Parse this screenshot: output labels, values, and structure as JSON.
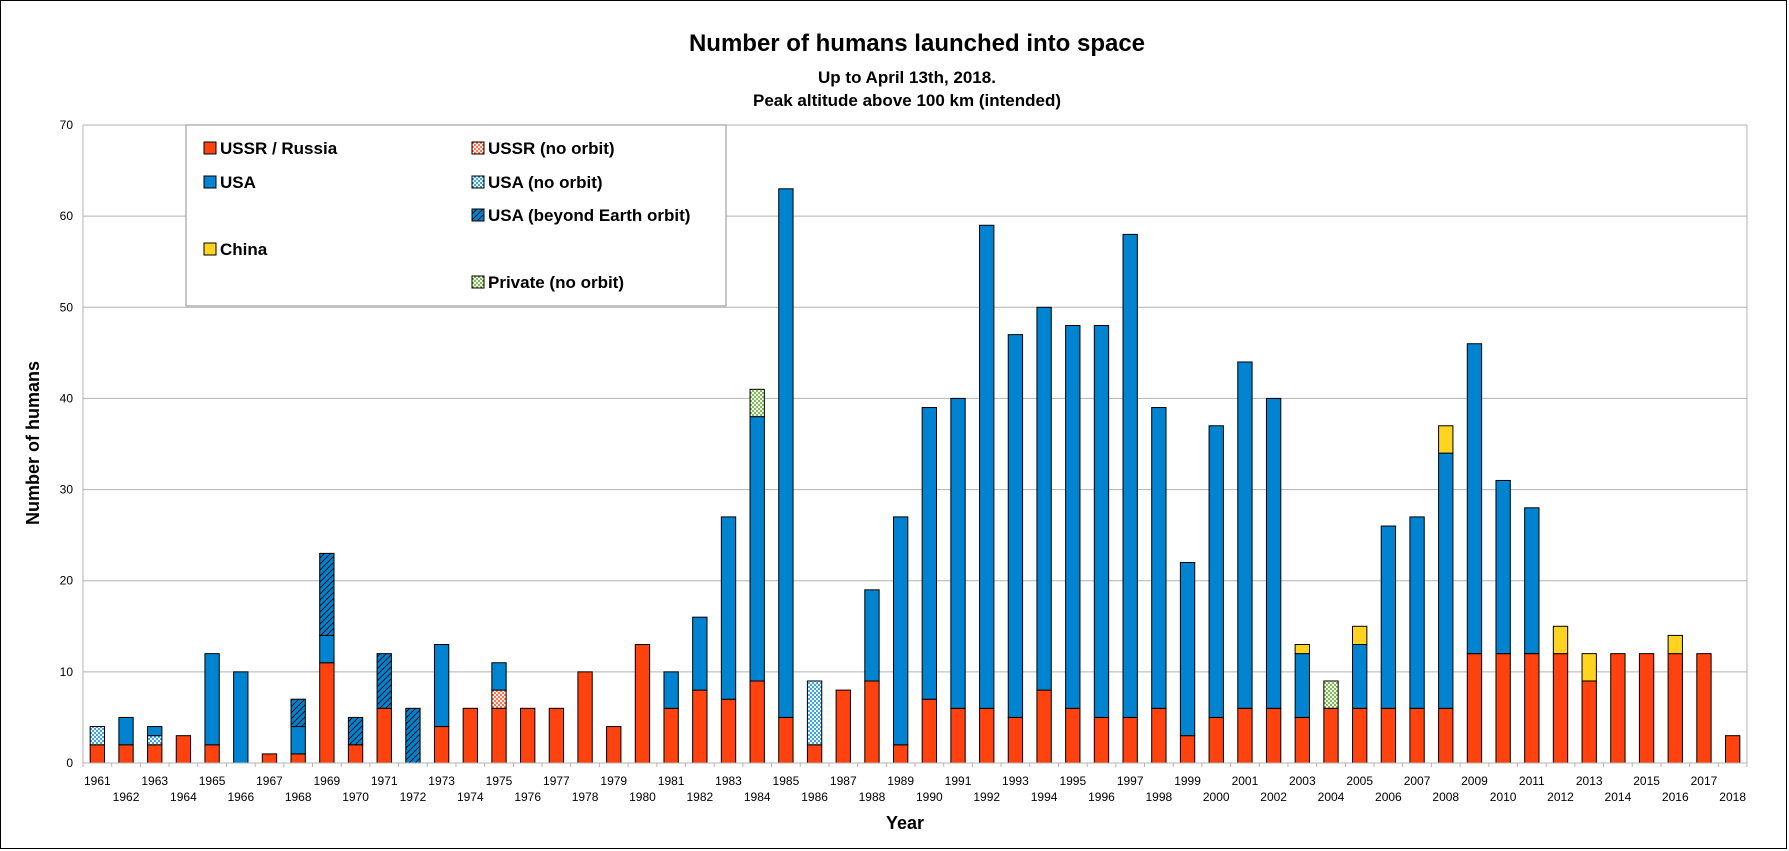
{
  "chart_data": {
    "type": "bar",
    "stacked": true,
    "title": "Number of humans launched into space",
    "subtitle_lines": [
      "Up to April 13th, 2018.",
      "Peak altitude above 100 km (intended)"
    ],
    "xlabel": "Year",
    "ylabel": "Number of humans",
    "ylim": [
      0,
      70
    ],
    "yticks": [
      0,
      10,
      20,
      30,
      40,
      50,
      60,
      70
    ],
    "grid": true,
    "legend_position": "top-left",
    "categories": [
      "1961",
      "1962",
      "1963",
      "1964",
      "1965",
      "1966",
      "1967",
      "1968",
      "1969",
      "1970",
      "1971",
      "1972",
      "1973",
      "1974",
      "1975",
      "1976",
      "1977",
      "1978",
      "1979",
      "1980",
      "1981",
      "1982",
      "1983",
      "1984",
      "1985",
      "1986",
      "1987",
      "1988",
      "1989",
      "1990",
      "1991",
      "1992",
      "1993",
      "1994",
      "1995",
      "1996",
      "1997",
      "1998",
      "1999",
      "2000",
      "2001",
      "2002",
      "2003",
      "2004",
      "2005",
      "2006",
      "2007",
      "2008",
      "2009",
      "2010",
      "2011",
      "2012",
      "2013",
      "2014",
      "2015",
      "2016",
      "2017",
      "2018"
    ],
    "series": [
      {
        "name": "USSR / Russia",
        "key": "ussr",
        "color": "#ff420e",
        "pattern": "solid",
        "values": [
          2,
          2,
          2,
          3,
          2,
          0,
          1,
          1,
          11,
          2,
          6,
          0,
          4,
          6,
          6,
          6,
          6,
          10,
          4,
          13,
          6,
          8,
          7,
          9,
          5,
          2,
          8,
          9,
          2,
          7,
          6,
          6,
          5,
          8,
          6,
          5,
          5,
          6,
          3,
          5,
          6,
          6,
          5,
          6,
          6,
          6,
          6,
          6,
          12,
          12,
          12,
          12,
          9,
          12,
          12,
          12,
          12,
          3
        ]
      },
      {
        "name": "USSR (no orbit)",
        "key": "ussr_no",
        "color": "#ff420e",
        "pattern": "crosshatch",
        "values": [
          0,
          0,
          0,
          0,
          0,
          0,
          0,
          0,
          0,
          0,
          0,
          0,
          0,
          0,
          2,
          0,
          0,
          0,
          0,
          0,
          0,
          0,
          0,
          0,
          0,
          0,
          0,
          0,
          0,
          0,
          0,
          0,
          0,
          0,
          0,
          0,
          0,
          0,
          0,
          0,
          0,
          0,
          0,
          0,
          0,
          0,
          0,
          0,
          0,
          0,
          0,
          0,
          0,
          0,
          0,
          0,
          0,
          0
        ]
      },
      {
        "name": "USA (no orbit)",
        "key": "usa_no",
        "color": "#0084d1",
        "pattern": "crosshatch",
        "values": [
          2,
          0,
          1,
          0,
          0,
          0,
          0,
          0,
          0,
          0,
          0,
          0,
          0,
          0,
          0,
          0,
          0,
          0,
          0,
          0,
          0,
          0,
          0,
          0,
          0,
          7,
          0,
          0,
          0,
          0,
          0,
          0,
          0,
          0,
          0,
          0,
          0,
          0,
          0,
          0,
          0,
          0,
          0,
          0,
          0,
          0,
          0,
          0,
          0,
          0,
          0,
          0,
          0,
          0,
          0,
          0,
          0,
          0
        ]
      },
      {
        "name": "USA",
        "key": "usa",
        "color": "#0084d1",
        "pattern": "solid",
        "values": [
          0,
          3,
          1,
          0,
          10,
          10,
          0,
          3,
          3,
          0,
          0,
          0,
          9,
          0,
          3,
          0,
          0,
          0,
          0,
          0,
          4,
          8,
          20,
          29,
          58,
          0,
          0,
          10,
          25,
          32,
          34,
          53,
          42,
          42,
          42,
          43,
          53,
          33,
          19,
          32,
          38,
          34,
          7,
          0,
          7,
          20,
          21,
          28,
          34,
          19,
          16,
          0,
          0,
          0,
          0,
          0,
          0,
          0
        ]
      },
      {
        "name": "USA (beyond Earth orbit)",
        "key": "usa_beo",
        "color": "#0084d1",
        "pattern": "hatch",
        "values": [
          0,
          0,
          0,
          0,
          0,
          0,
          0,
          3,
          9,
          3,
          6,
          6,
          0,
          0,
          0,
          0,
          0,
          0,
          0,
          0,
          0,
          0,
          0,
          0,
          0,
          0,
          0,
          0,
          0,
          0,
          0,
          0,
          0,
          0,
          0,
          0,
          0,
          0,
          0,
          0,
          0,
          0,
          0,
          0,
          0,
          0,
          0,
          0,
          0,
          0,
          0,
          0,
          0,
          0,
          0,
          0,
          0,
          0
        ]
      },
      {
        "name": "China",
        "key": "china",
        "color": "#ffd320",
        "pattern": "solid",
        "values": [
          0,
          0,
          0,
          0,
          0,
          0,
          0,
          0,
          0,
          0,
          0,
          0,
          0,
          0,
          0,
          0,
          0,
          0,
          0,
          0,
          0,
          0,
          0,
          0,
          0,
          0,
          0,
          0,
          0,
          0,
          0,
          0,
          0,
          0,
          0,
          0,
          0,
          0,
          0,
          0,
          0,
          0,
          1,
          0,
          2,
          0,
          0,
          3,
          0,
          0,
          0,
          3,
          3,
          0,
          0,
          2,
          0,
          0
        ]
      },
      {
        "name": "Private (no orbit)",
        "key": "private",
        "color": "#579d1c",
        "pattern": "crosshatch",
        "values": [
          0,
          0,
          0,
          0,
          0,
          0,
          0,
          0,
          0,
          0,
          0,
          0,
          0,
          0,
          0,
          0,
          0,
          0,
          0,
          0,
          0,
          0,
          0,
          3,
          0,
          0,
          0,
          0,
          0,
          0,
          0,
          0,
          0,
          0,
          0,
          0,
          0,
          0,
          0,
          0,
          0,
          0,
          0,
          3,
          0,
          0,
          0,
          0,
          0,
          0,
          0,
          0,
          0,
          0,
          0,
          0,
          0,
          0
        ]
      }
    ],
    "legend": [
      {
        "key": "ussr",
        "label": "USSR / Russia"
      },
      {
        "key": "ussr_no",
        "label": "USSR (no orbit)"
      },
      {
        "key": "usa",
        "label": "USA"
      },
      {
        "key": "usa_no",
        "label": "USA (no orbit)"
      },
      {
        "key": "usa_beo",
        "label": "USA (beyond Earth orbit)"
      },
      {
        "key": "china",
        "label": "China"
      },
      {
        "key": "private",
        "label": "Private (no orbit)"
      }
    ]
  }
}
